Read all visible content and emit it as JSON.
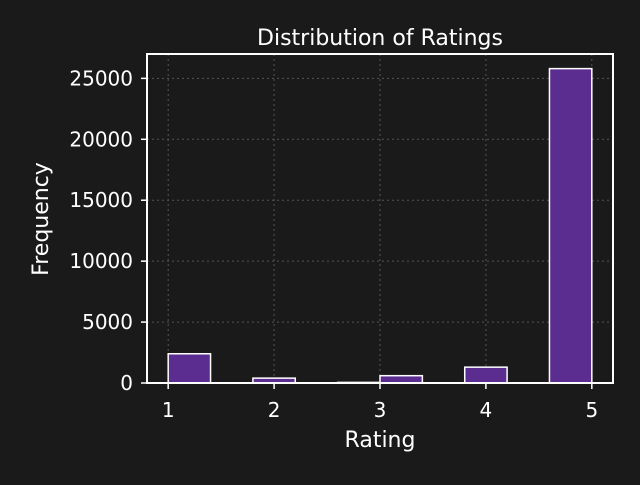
{
  "colors": {
    "background": "#1a1a1a",
    "bar_fill": "#5c2d91",
    "bar_edge": "#ffffff",
    "axes": "#ffffff",
    "grid": "#555555",
    "text": "#ffffff"
  },
  "chart_data": {
    "type": "bar",
    "title": "Distribution of Ratings",
    "xlabel": "Rating",
    "ylabel": "Frequency",
    "grid": true,
    "legend": "none",
    "x_ticks": [
      "1",
      "2",
      "3",
      "4",
      "5"
    ],
    "y_ticks": [
      "0",
      "5000",
      "10000",
      "15000",
      "20000",
      "25000"
    ],
    "xlim": [
      0.8,
      5.2
    ],
    "ylim": [
      0,
      27000
    ],
    "bars": [
      {
        "x_start": 1.0,
        "x_end": 1.4,
        "value": 2400
      },
      {
        "x_start": 1.8,
        "x_end": 2.2,
        "value": 400
      },
      {
        "x_start": 2.6,
        "x_end": 3.0,
        "value": 50
      },
      {
        "x_start": 3.0,
        "x_end": 3.4,
        "value": 600
      },
      {
        "x_start": 3.8,
        "x_end": 4.2,
        "value": 1300
      },
      {
        "x_start": 4.6,
        "x_end": 5.0,
        "value": 25800
      }
    ]
  }
}
